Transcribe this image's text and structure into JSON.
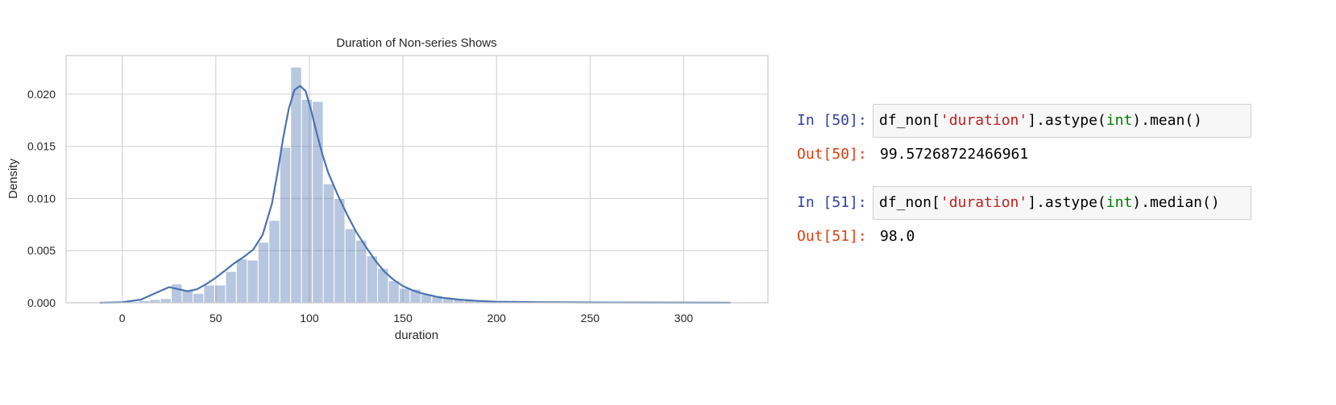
{
  "chart_data": {
    "type": "bar",
    "title": "Duration of Non-series Shows",
    "xlabel": "duration",
    "ylabel": "Density",
    "xlim": [
      -30,
      345
    ],
    "ylim": [
      0,
      0.0237
    ],
    "grid": true,
    "xticks": [
      0,
      50,
      100,
      150,
      200,
      250,
      300
    ],
    "xtick_labels": [
      "0",
      "50",
      "100",
      "150",
      "200",
      "250",
      "300"
    ],
    "yticks": [
      0,
      0.005,
      0.01,
      0.015,
      0.02
    ],
    "ytick_labels": [
      "0.000",
      "0.005",
      "0.010",
      "0.015",
      "0.020"
    ],
    "bar_color": "#4c72b0",
    "histogram": {
      "bin_edges_start": 3,
      "bin_width": 5.8,
      "values": [
        0.0001,
        0.0002,
        0.0003,
        0.0004,
        0.0018,
        0.0012,
        0.0009,
        0.0017,
        0.0017,
        0.003,
        0.0042,
        0.0041,
        0.0058,
        0.0079,
        0.0149,
        0.0226,
        0.0195,
        0.0193,
        0.0114,
        0.01,
        0.0071,
        0.006,
        0.0045,
        0.0033,
        0.0021,
        0.0014,
        0.0013,
        0.0008,
        0.0007,
        0.0005,
        0.0004,
        0.0003,
        0.0002,
        0.0002,
        0.0001,
        0.0001,
        0.0001,
        0.0001,
        0.0001,
        0.0001,
        8e-05,
        6e-05,
        5e-05,
        5e-05,
        4e-05,
        4e-05,
        3e-05,
        3e-05,
        3e-05,
        3e-05,
        3e-05,
        2e-05,
        2e-05,
        2e-05,
        2e-05,
        2e-05
      ]
    },
    "kde": {
      "name": "",
      "color": "#4c72b0",
      "x": [
        -12,
        0,
        10,
        15,
        20,
        25,
        30,
        35,
        40,
        45,
        50,
        55,
        60,
        65,
        70,
        75,
        80,
        83,
        86,
        89,
        92,
        95,
        98,
        101,
        104,
        107,
        110,
        115,
        120,
        125,
        130,
        135,
        140,
        145,
        150,
        155,
        160,
        170,
        180,
        190,
        200,
        220,
        250,
        280,
        310,
        325
      ],
      "y": [
        0,
        5e-05,
        0.0003,
        0.0007,
        0.0011,
        0.0015,
        0.0013,
        0.0011,
        0.0013,
        0.0018,
        0.0024,
        0.0031,
        0.0038,
        0.0044,
        0.0051,
        0.0065,
        0.0095,
        0.0125,
        0.0158,
        0.0186,
        0.0204,
        0.0208,
        0.0203,
        0.0184,
        0.0162,
        0.0142,
        0.0125,
        0.0104,
        0.0085,
        0.0068,
        0.0054,
        0.0041,
        0.003,
        0.0022,
        0.0016,
        0.0012,
        0.0009,
        0.0005,
        0.0003,
        0.00018,
        0.0001,
        6e-05,
        3e-05,
        2e-05,
        1e-05,
        5e-06
      ]
    }
  },
  "notebook": {
    "cells": [
      {
        "in_prompt": "In [50]:",
        "code": {
          "pre": "df_non[",
          "str": "'duration'",
          "mid": "].astype(",
          "builtin": "int",
          "post": ").mean()"
        },
        "out_prompt": "Out[50]:",
        "output": "99.57268722466961"
      },
      {
        "in_prompt": "In [51]:",
        "code": {
          "pre": "df_non[",
          "str": "'duration'",
          "mid": "].astype(",
          "builtin": "int",
          "post": ").median()"
        },
        "out_prompt": "Out[51]:",
        "output": "98.0"
      }
    ]
  }
}
